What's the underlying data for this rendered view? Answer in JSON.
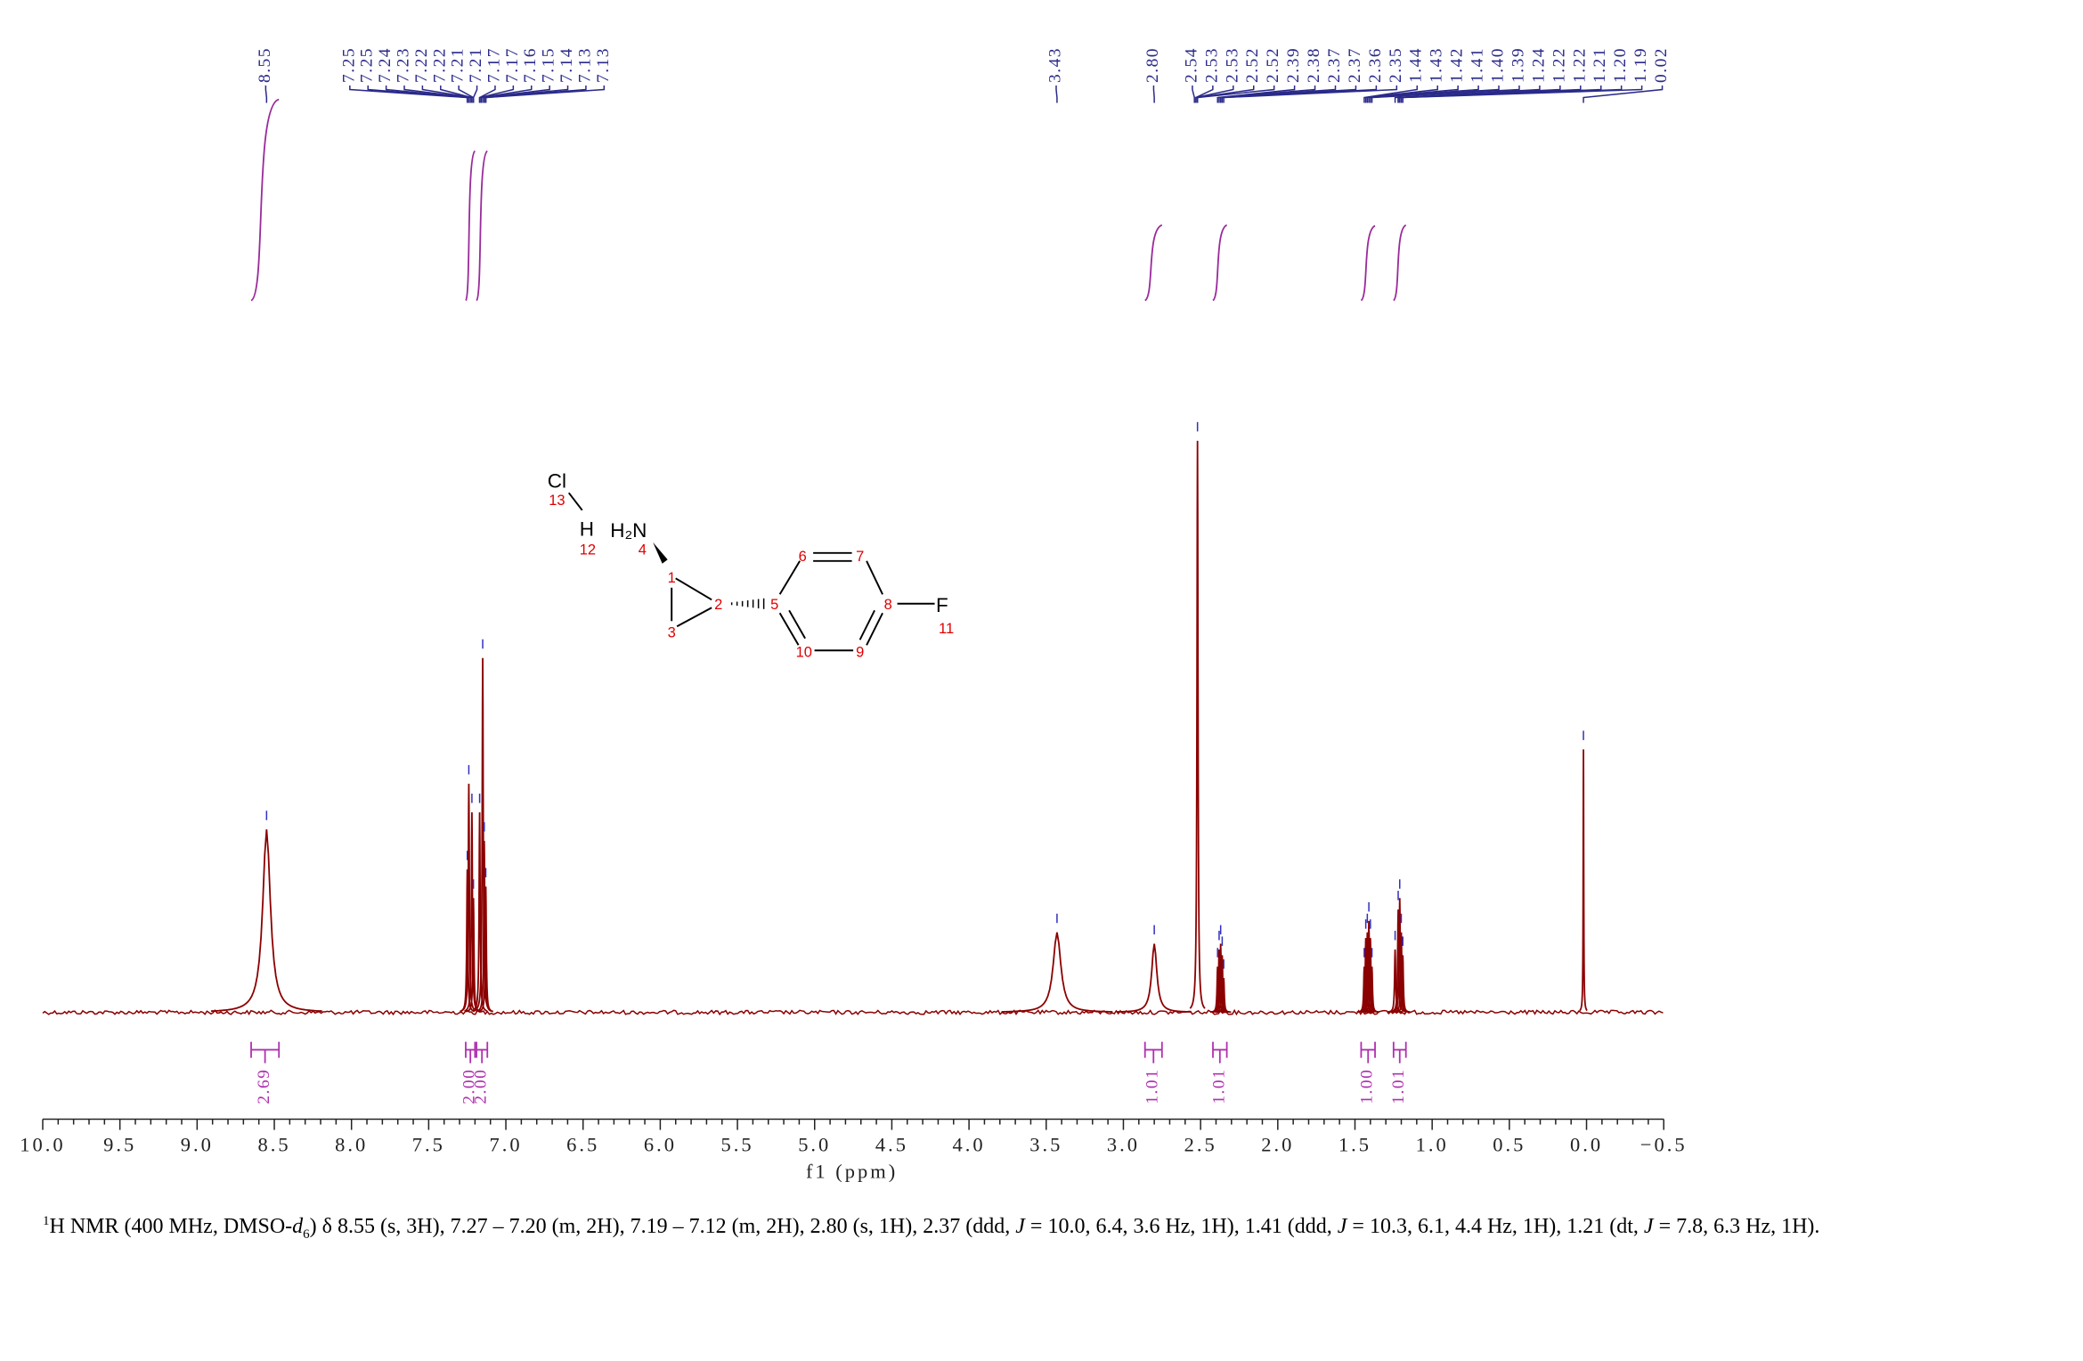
{
  "chart_data": {
    "type": "nmr",
    "xlabel": "f1 (ppm)",
    "xlim": [
      10,
      -0.5
    ],
    "ylim": [
      0,
      100
    ],
    "xticks": [
      {
        "value": 10,
        "label": "10.0"
      },
      9.5,
      {
        "value": 9,
        "label": "9.0"
      },
      8.5,
      {
        "value": 8,
        "label": "8.0"
      },
      7.5,
      {
        "value": 7,
        "label": "7.0"
      },
      6.5,
      {
        "value": 6,
        "label": "6.0"
      },
      5.5,
      {
        "value": 5,
        "label": "5.0"
      },
      4.5,
      {
        "value": 4,
        "label": "4.0"
      },
      3.5,
      {
        "value": 3,
        "label": "3.0"
      },
      2.5,
      {
        "value": 2,
        "label": "2.0"
      },
      1.5,
      {
        "value": 1,
        "label": "1.0"
      },
      0.5,
      {
        "value": 0,
        "label": "0.0"
      },
      {
        "value": -0.5,
        "label": "−0.5"
      }
    ],
    "line_color": "#8b0000",
    "peak_ppm": [
      8.55,
      7.25,
      7.24,
      7.22,
      7.21,
      7.17,
      7.15,
      7.14,
      7.13,
      3.43,
      2.8,
      2.52,
      2.39,
      2.38,
      2.37,
      2.36,
      2.35,
      1.44,
      1.43,
      1.42,
      1.41,
      1.4,
      1.39,
      1.24,
      1.22,
      1.21,
      1.2,
      1.19,
      0.02
    ],
    "peak_intensity": [
      32,
      25,
      40,
      35,
      20,
      35,
      62,
      30,
      22,
      14,
      12,
      100,
      8,
      11,
      12,
      10,
      6,
      8,
      13,
      14,
      16,
      13,
      8,
      11,
      18,
      20,
      14,
      10,
      46
    ],
    "peak_width": [
      0.03,
      0.004,
      0.004,
      0.004,
      0.004,
      0.004,
      0.004,
      0.004,
      0.004,
      0.03,
      0.02,
      0.004,
      0.004,
      0.004,
      0.004,
      0.004,
      0.004,
      0.004,
      0.004,
      0.004,
      0.004,
      0.004,
      0.004,
      0.004,
      0.004,
      0.004,
      0.004,
      0.004,
      0.002
    ],
    "peak_labels": [
      8.55,
      7.25,
      7.25,
      7.24,
      7.23,
      7.22,
      7.22,
      7.21,
      7.21,
      7.17,
      7.17,
      7.16,
      7.15,
      7.14,
      7.13,
      7.13,
      3.43,
      {
        "value": 2.8,
        "label": "2.80"
      },
      2.54,
      2.53,
      2.53,
      2.52,
      2.52,
      2.39,
      2.38,
      2.37,
      2.37,
      2.36,
      2.35,
      1.44,
      1.43,
      1.42,
      1.41,
      {
        "value": 1.4,
        "label": "1.40"
      },
      1.39,
      1.24,
      1.22,
      1.22,
      1.21,
      {
        "value": 1.2,
        "label": "1.20"
      },
      1.19,
      0.02
    ],
    "integral_ranges": [
      [
        8.65,
        8.47
      ],
      [
        7.26,
        7.2
      ],
      [
        7.19,
        7.12
      ],
      [
        2.86,
        2.75
      ],
      [
        2.42,
        2.33
      ],
      [
        1.46,
        1.37
      ],
      [
        1.25,
        1.17
      ]
    ],
    "integral_values": [
      2.69,
      {
        "value": 2,
        "label": "2.00"
      },
      {
        "value": 2,
        "label": "2.00"
      },
      1.01,
      1.01,
      {
        "value": 1,
        "label": "1.00"
      },
      1.01
    ],
    "molecule": {
      "atoms": [
        "Cl",
        "H",
        "H₂N",
        "F"
      ],
      "numbers": [
        "13",
        "12",
        "4",
        "1",
        "2",
        "3",
        "5",
        "6",
        "7",
        "8",
        "9",
        "10",
        "11"
      ]
    },
    "caption": [
      "1",
      "H NMR (400 MHz, DMSO-",
      "d",
      "6",
      ") δ 8.55 (s, 3H), 7.27 – 7.20 (m, 2H), 7.19 – 7.12 (m, 2H), 2.80 (s, 1H), 2.37 (ddd, ",
      "J",
      " = 10.0, 6.4, 3.6 Hz, 1H), 1.41 (ddd, ",
      "J",
      " = 10.3, 6.1, 4.4 Hz, 1H), 1.21 (dt, ",
      "J",
      " = 7.8, 6.3 Hz, 1H)."
    ]
  }
}
